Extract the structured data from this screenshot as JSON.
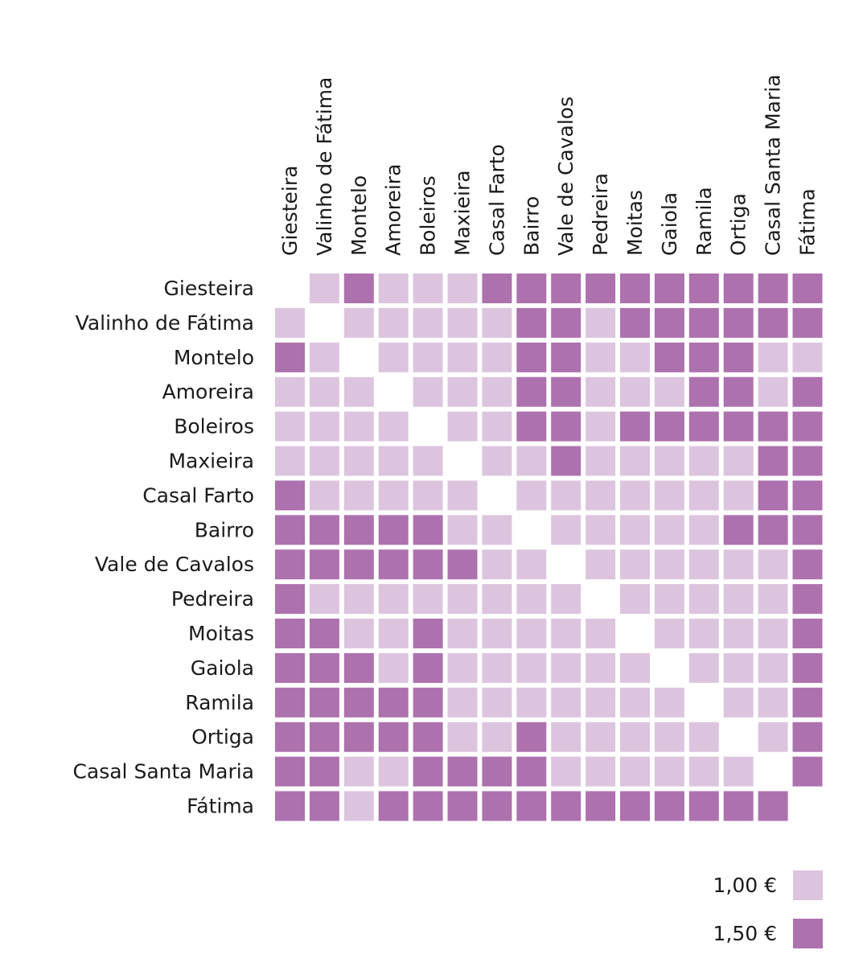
{
  "chart_data": {
    "type": "heatmap",
    "title": "",
    "xlabel": "",
    "ylabel": "",
    "categories": [
      "Giesteira",
      "Valinho de Fátima",
      "Montelo",
      "Amoreira",
      "Boleiros",
      "Maxieira",
      "Casal Farto",
      "Bairro",
      "Vale de Cavalos",
      "Pedreira",
      "Moitas",
      "Gaiola",
      "Ramila",
      "Ortiga",
      "Casal Santa Maria",
      "Fátima"
    ],
    "legend": [
      {
        "label": "1,00 €",
        "value": 1.0,
        "color": "#dcc4df"
      },
      {
        "label": "1,50 €",
        "value": 1.5,
        "color": "#ad71ae"
      }
    ],
    "legend_position": "bottom-right",
    "values": [
      [
        null,
        1.0,
        1.5,
        1.0,
        1.0,
        1.0,
        1.5,
        1.5,
        1.5,
        1.5,
        1.5,
        1.5,
        1.5,
        1.5,
        1.5,
        1.5
      ],
      [
        1.0,
        null,
        1.0,
        1.0,
        1.0,
        1.0,
        1.0,
        1.5,
        1.5,
        1.0,
        1.5,
        1.5,
        1.5,
        1.5,
        1.5,
        1.5
      ],
      [
        1.5,
        1.0,
        null,
        1.0,
        1.0,
        1.0,
        1.0,
        1.5,
        1.5,
        1.0,
        1.0,
        1.5,
        1.5,
        1.5,
        1.0,
        1.0
      ],
      [
        1.0,
        1.0,
        1.0,
        null,
        1.0,
        1.0,
        1.0,
        1.5,
        1.5,
        1.0,
        1.0,
        1.0,
        1.5,
        1.5,
        1.0,
        1.5
      ],
      [
        1.0,
        1.0,
        1.0,
        1.0,
        null,
        1.0,
        1.0,
        1.5,
        1.5,
        1.0,
        1.5,
        1.5,
        1.5,
        1.5,
        1.5,
        1.5
      ],
      [
        1.0,
        1.0,
        1.0,
        1.0,
        1.0,
        null,
        1.0,
        1.0,
        1.5,
        1.0,
        1.0,
        1.0,
        1.0,
        1.0,
        1.5,
        1.5
      ],
      [
        1.5,
        1.0,
        1.0,
        1.0,
        1.0,
        1.0,
        null,
        1.0,
        1.0,
        1.0,
        1.0,
        1.0,
        1.0,
        1.0,
        1.5,
        1.5
      ],
      [
        1.5,
        1.5,
        1.5,
        1.5,
        1.5,
        1.0,
        1.0,
        null,
        1.0,
        1.0,
        1.0,
        1.0,
        1.0,
        1.5,
        1.5,
        1.5
      ],
      [
        1.5,
        1.5,
        1.5,
        1.5,
        1.5,
        1.5,
        1.0,
        1.0,
        null,
        1.0,
        1.0,
        1.0,
        1.0,
        1.0,
        1.0,
        1.5
      ],
      [
        1.5,
        1.0,
        1.0,
        1.0,
        1.0,
        1.0,
        1.0,
        1.0,
        1.0,
        null,
        1.0,
        1.0,
        1.0,
        1.0,
        1.0,
        1.5
      ],
      [
        1.5,
        1.5,
        1.0,
        1.0,
        1.5,
        1.0,
        1.0,
        1.0,
        1.0,
        1.0,
        null,
        1.0,
        1.0,
        1.0,
        1.0,
        1.5
      ],
      [
        1.5,
        1.5,
        1.5,
        1.0,
        1.5,
        1.0,
        1.0,
        1.0,
        1.0,
        1.0,
        1.0,
        null,
        1.0,
        1.0,
        1.0,
        1.5
      ],
      [
        1.5,
        1.5,
        1.5,
        1.5,
        1.5,
        1.0,
        1.0,
        1.0,
        1.0,
        1.0,
        1.0,
        1.0,
        null,
        1.0,
        1.0,
        1.5
      ],
      [
        1.5,
        1.5,
        1.5,
        1.5,
        1.5,
        1.0,
        1.0,
        1.5,
        1.0,
        1.0,
        1.0,
        1.0,
        1.0,
        null,
        1.0,
        1.5
      ],
      [
        1.5,
        1.5,
        1.0,
        1.0,
        1.5,
        1.5,
        1.5,
        1.5,
        1.0,
        1.0,
        1.0,
        1.0,
        1.0,
        1.0,
        null,
        1.5
      ],
      [
        1.5,
        1.5,
        1.0,
        1.5,
        1.5,
        1.5,
        1.5,
        1.5,
        1.5,
        1.5,
        1.5,
        1.5,
        1.5,
        1.5,
        1.5,
        null
      ]
    ]
  }
}
